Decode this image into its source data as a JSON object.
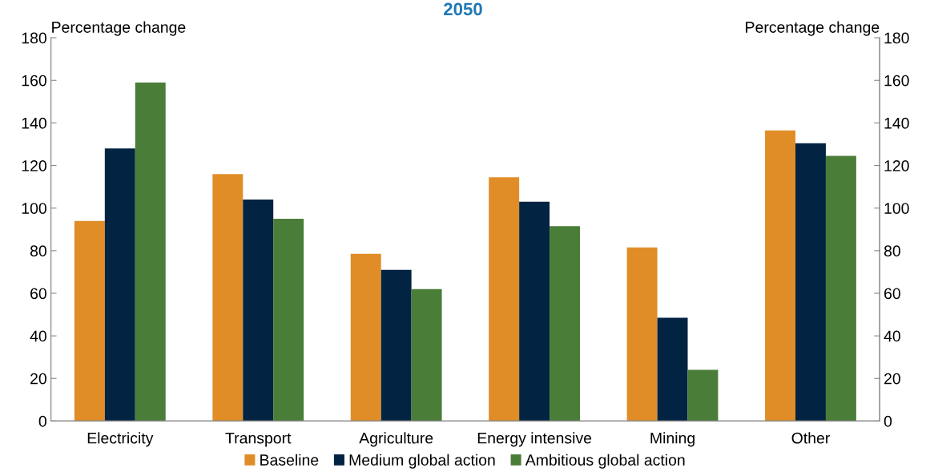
{
  "chart_data": {
    "type": "bar",
    "title": "2050",
    "ylabel": "Percentage change",
    "y2label": "Percentage change",
    "categories": [
      "Electricity",
      "Transport",
      "Agriculture",
      "Energy intensive",
      "Mining",
      "Other"
    ],
    "series": [
      {
        "name": "Baseline",
        "color": "#e08d27",
        "values": [
          94,
          116,
          78.5,
          114.5,
          81.5,
          136.5
        ]
      },
      {
        "name": "Medium global action",
        "color": "#022341",
        "values": [
          128,
          104,
          71,
          103,
          48.5,
          130.5
        ]
      },
      {
        "name": "Ambitious global action",
        "color": "#4a7d38",
        "values": [
          159,
          95,
          62,
          91.5,
          24,
          124.5
        ]
      }
    ],
    "ylim": [
      0,
      180
    ],
    "yticks": [
      0,
      20,
      40,
      60,
      80,
      100,
      120,
      140,
      160,
      180
    ],
    "y2lim": [
      0,
      180
    ],
    "y2ticks": [
      0,
      20,
      40,
      60,
      80,
      100,
      120,
      140,
      160,
      180
    ],
    "legend": "bottom",
    "grid": false
  }
}
